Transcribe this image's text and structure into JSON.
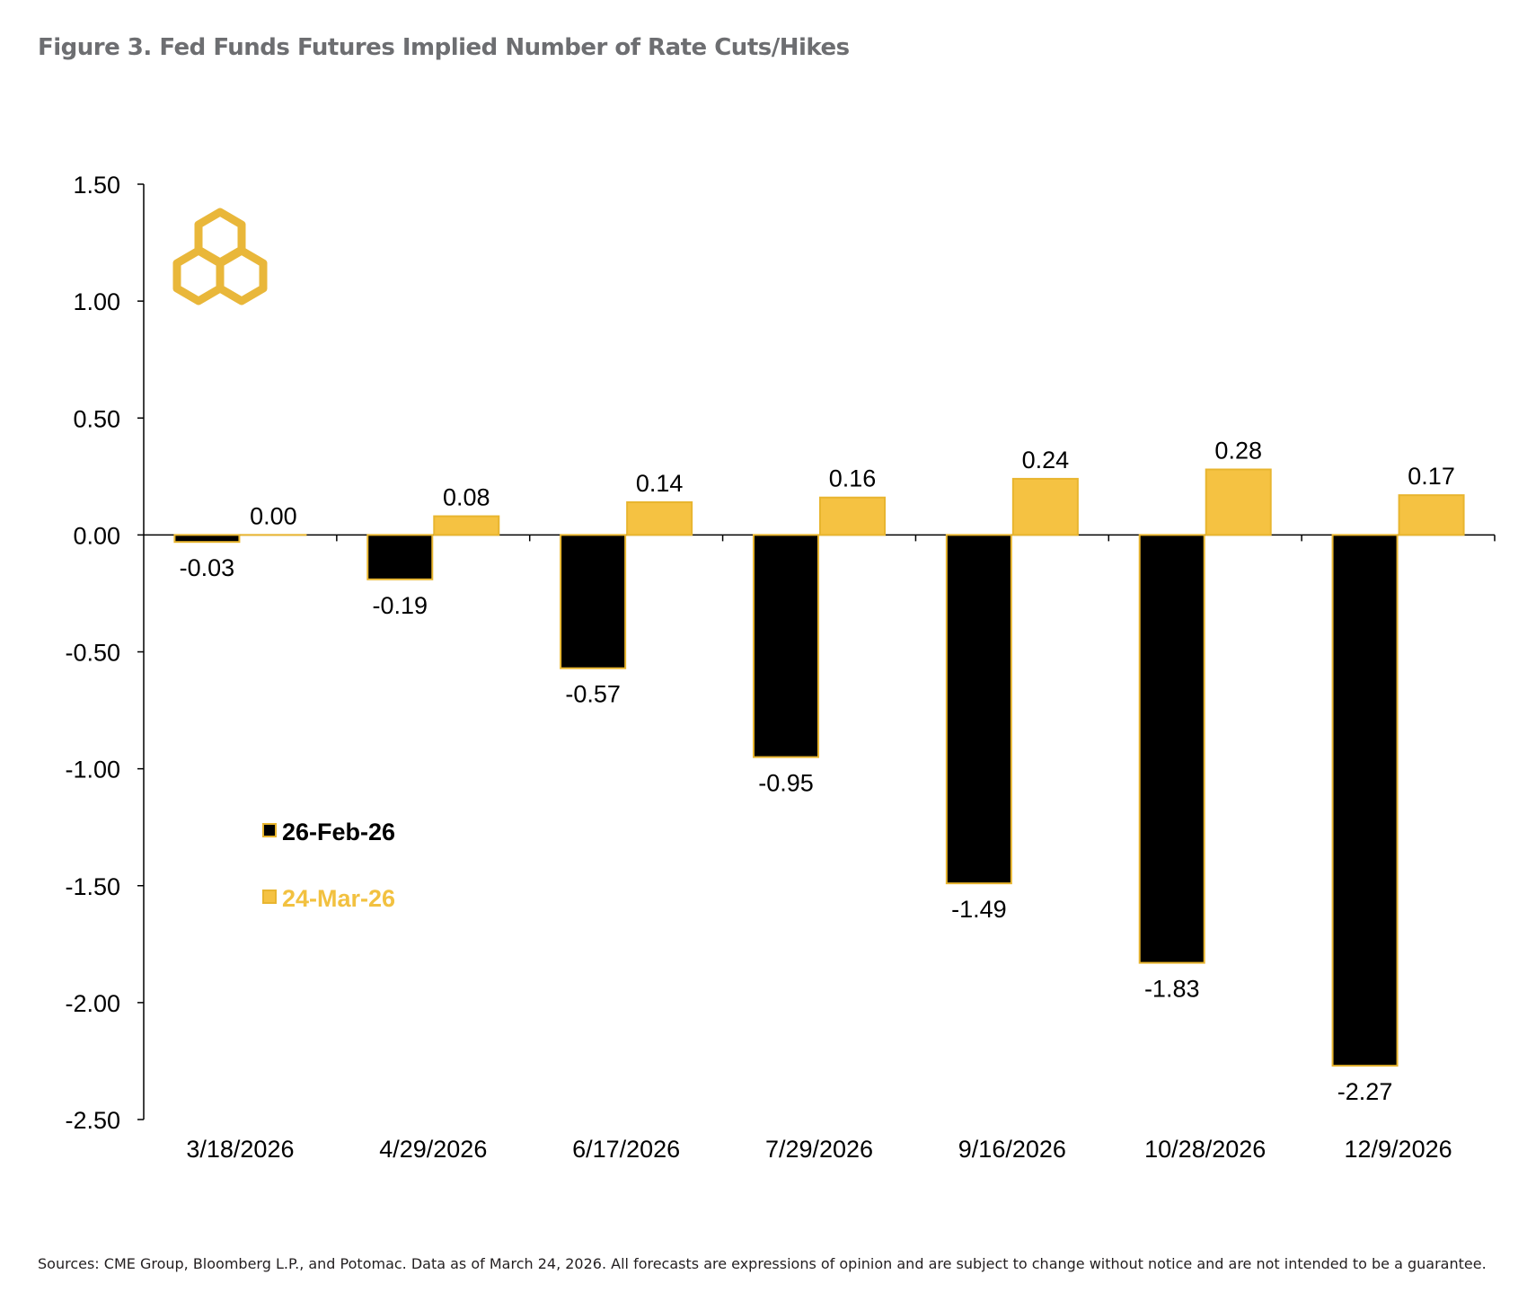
{
  "title": "Figure 3. Fed Funds Futures Implied Number of Rate Cuts/Hikes",
  "footnote": "Sources: CME Group, Bloomberg L.P., and Potomac. Data as of March 24, 2026. All forecasts are expressions of opinion and are subject to change without notice and are not intended to be a guarantee.",
  "colors": {
    "series1": "#000000",
    "series2": "#f5c242",
    "bar_border": "#e8b52f",
    "legend2_text": "#f2c140",
    "logo": "#e9b73a",
    "axis": "#000000"
  },
  "logo": {
    "icon": "potomac-logo-icon"
  },
  "chart_data": {
    "type": "bar",
    "title": "Figure 3. Fed Funds Futures Implied Number of Rate Cuts/Hikes",
    "xlabel": "",
    "ylabel": "",
    "categories": [
      "3/18/2026",
      "4/29/2026",
      "6/17/2026",
      "7/29/2026",
      "9/16/2026",
      "10/28/2026",
      "12/9/2026"
    ],
    "series": [
      {
        "name": "26-Feb-26",
        "values": [
          -0.03,
          -0.19,
          -0.57,
          -0.95,
          -1.49,
          -1.83,
          -2.27
        ]
      },
      {
        "name": "24-Mar-26",
        "values": [
          0.0,
          0.08,
          0.14,
          0.16,
          0.24,
          0.28,
          0.17
        ]
      }
    ],
    "data_labels": [
      [
        "-0.03",
        "-0.19",
        "-0.57",
        "-0.95",
        "-1.49",
        "-1.83",
        "-2.27"
      ],
      [
        "0.00",
        "0.08",
        "0.14",
        "0.16",
        "0.24",
        "0.28",
        "0.17"
      ]
    ],
    "ylim": [
      -2.5,
      1.5
    ],
    "yticks": [
      1.5,
      1.0,
      0.5,
      0.0,
      -0.5,
      -1.0,
      -1.5,
      -2.0,
      -2.5
    ],
    "ytick_labels": [
      "1.50",
      "1.00",
      "0.50",
      "0.00",
      "-0.50",
      "-1.00",
      "-1.50",
      "-2.00",
      "-2.50"
    ],
    "grid": false,
    "legend_position": "left"
  }
}
